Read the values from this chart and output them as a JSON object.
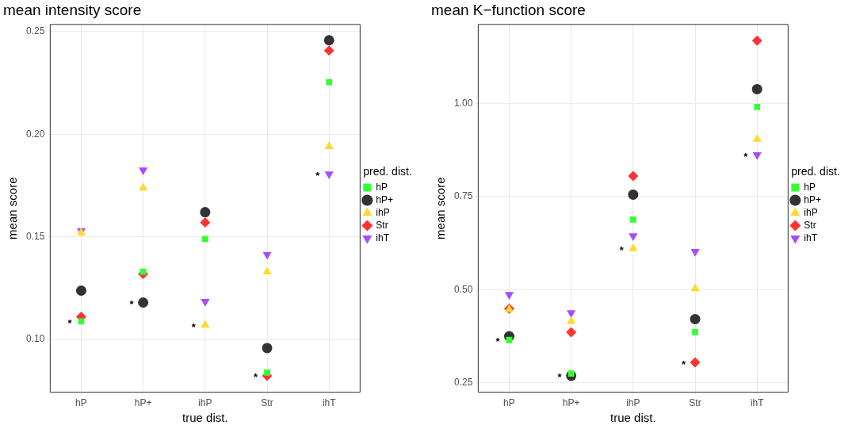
{
  "chart_data": [
    {
      "type": "scatter",
      "title": "mean intensity score",
      "xlabel": "true dist.",
      "ylabel": "mean score",
      "legend_title": "pred. dist.",
      "legend": "right",
      "grid": true,
      "categories": [
        "hP",
        "hP+",
        "ihP",
        "Str",
        "ihT"
      ],
      "ylim": [
        0.0743,
        0.2535
      ],
      "yticks": [
        {
          "value": 0.1,
          "label": "0.10"
        },
        {
          "value": 0.15,
          "label": "0.15"
        },
        {
          "value": 0.2,
          "label": "0.20"
        },
        {
          "value": 0.25,
          "label": "0.25"
        }
      ],
      "series": [
        {
          "name": "hP",
          "color": "#33ff33",
          "marker": "square",
          "values": [
            0.1088,
            0.133,
            0.149,
            0.0839,
            0.2254
          ]
        },
        {
          "name": "hP+",
          "color": "#333333",
          "marker": "circle",
          "values": [
            0.1238,
            0.118,
            0.162,
            0.0958,
            0.2458
          ]
        },
        {
          "name": "ihP",
          "color": "#ffd92f",
          "marker": "triangle",
          "values": [
            0.152,
            0.1738,
            0.107,
            0.133,
            0.194
          ]
        },
        {
          "name": "Str",
          "color": "#ff3333",
          "marker": "diamond",
          "values": [
            0.111,
            0.1319,
            0.157,
            0.0823,
            0.2408
          ]
        },
        {
          "name": "ihT",
          "color": "#a64dff",
          "marker": "triangle-down",
          "values": [
            0.153,
            0.1825,
            0.1185,
            0.1414,
            0.1806
          ]
        }
      ],
      "annotations": [
        {
          "text": "*",
          "x": "hP",
          "y": 0.1088
        },
        {
          "text": "*",
          "x": "hP+",
          "y": 0.118
        },
        {
          "text": "*",
          "x": "ihP",
          "y": 0.107
        },
        {
          "text": "*",
          "x": "Str",
          "y": 0.0823
        },
        {
          "text": "*",
          "x": "ihT",
          "y": 0.1806
        }
      ]
    },
    {
      "type": "scatter",
      "title": "mean K−function score",
      "xlabel": "true dist.",
      "ylabel": "mean score",
      "legend_title": "pred. dist.",
      "legend": "right",
      "grid": true,
      "categories": [
        "hP",
        "hP+",
        "ihP",
        "Str",
        "ihT"
      ],
      "ylim": [
        0.2249,
        1.2116
      ],
      "yticks": [
        {
          "value": 0.25,
          "label": "0.25"
        },
        {
          "value": 0.5,
          "label": "0.50"
        },
        {
          "value": 0.75,
          "label": "0.75"
        },
        {
          "value": 1,
          "label": "1.00"
        }
      ],
      "series": [
        {
          "name": "hP",
          "color": "#33ff33",
          "marker": "square",
          "values": [
            0.365,
            0.275,
            0.688,
            0.386,
            0.99
          ]
        },
        {
          "name": "hP+",
          "color": "#333333",
          "marker": "circle",
          "values": [
            0.375,
            0.269,
            0.755,
            0.421,
            1.038
          ]
        },
        {
          "name": "ihP",
          "color": "#ffd92f",
          "marker": "triangle",
          "values": [
            0.447,
            0.415,
            0.61,
            0.503,
            0.904
          ]
        },
        {
          "name": "Str",
          "color": "#ff3333",
          "marker": "diamond",
          "values": [
            0.449,
            0.386,
            0.805,
            0.305,
            1.168
          ]
        },
        {
          "name": "ihT",
          "color": "#a64dff",
          "marker": "triangle-down",
          "values": [
            0.487,
            0.438,
            0.644,
            0.602,
            0.862
          ]
        }
      ],
      "annotations": [
        {
          "text": "*",
          "x": "hP",
          "y": 0.365
        },
        {
          "text": "*",
          "x": "hP+",
          "y": 0.269
        },
        {
          "text": "*",
          "x": "ihP",
          "y": 0.61
        },
        {
          "text": "*",
          "x": "Str",
          "y": 0.305
        },
        {
          "text": "*",
          "x": "ihT",
          "y": 0.862
        }
      ]
    }
  ]
}
